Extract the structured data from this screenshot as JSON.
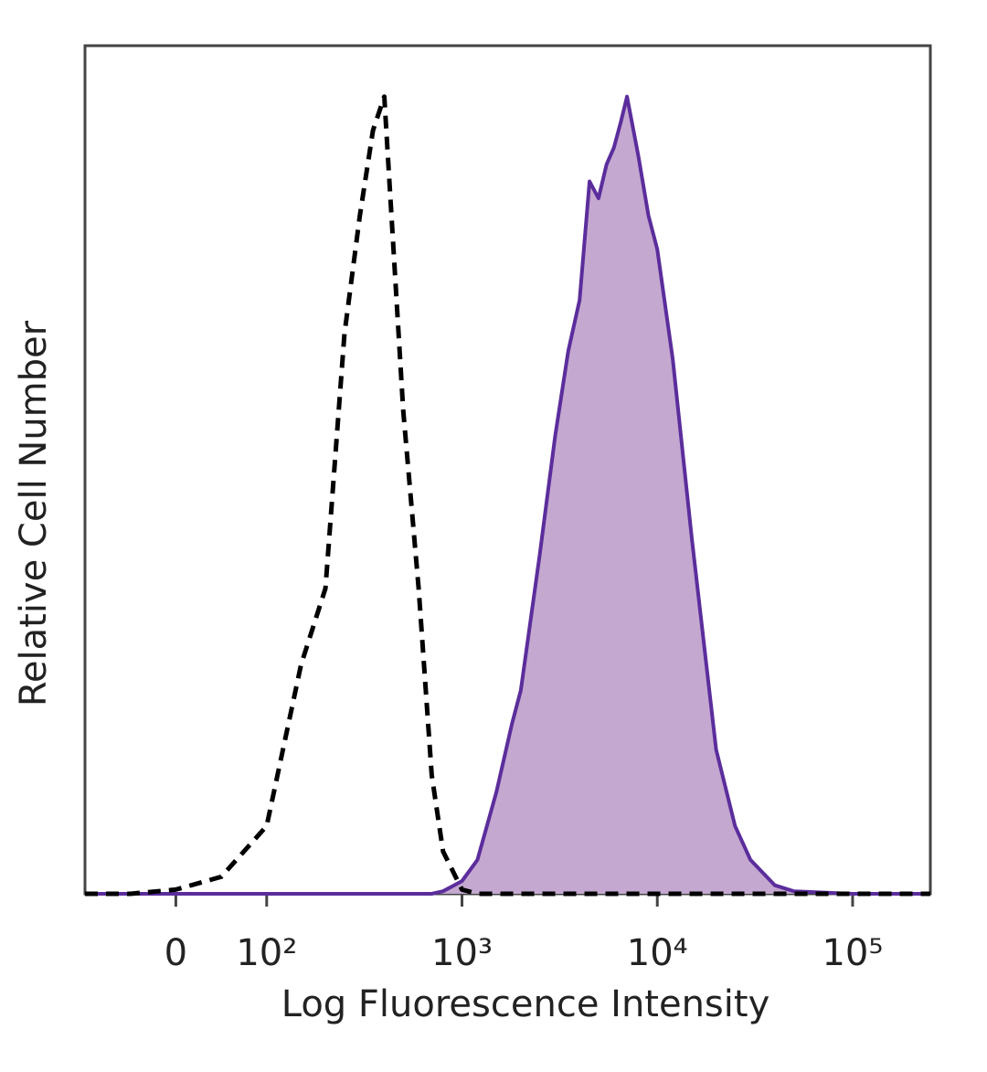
{
  "chart_data": {
    "type": "histogram-overlay",
    "xlabel": "Log Fluorescence Intensity",
    "ylabel": "Relative Cell Number",
    "xscale": "biexponential",
    "xlim": [
      -100,
      250000
    ],
    "ylim": [
      0,
      100
    ],
    "xticks": [
      0,
      {
        "value": 100,
        "label": "10²"
      },
      {
        "value": 1000,
        "label": "10³"
      },
      {
        "value": 10000,
        "label": "10⁴"
      },
      {
        "value": 100000,
        "label": "10⁵"
      }
    ],
    "x": [
      -100,
      -50,
      0,
      50,
      100,
      150,
      200,
      250,
      300,
      350,
      400,
      500,
      600,
      700,
      800,
      1000,
      1200,
      1500,
      1800,
      2000,
      2500,
      3000,
      3500,
      4000,
      4500,
      5000,
      5500,
      6000,
      6500,
      7000,
      8000,
      9000,
      10000,
      12000,
      15000,
      20000,
      25000,
      30000,
      40000,
      50000,
      100000,
      250000
    ],
    "series": [
      {
        "color": "#5b2d9c",
        "fill_color": "#c4a8d0",
        "values": [
          0,
          0,
          0,
          0,
          0,
          0,
          0,
          0,
          0,
          0,
          0,
          0,
          0,
          0,
          0.3,
          1.5,
          4,
          12,
          20,
          24,
          40,
          54,
          64,
          70,
          84,
          82,
          86,
          88,
          91,
          94,
          87,
          80,
          76,
          63,
          42,
          17,
          8,
          4,
          1,
          0.3,
          0,
          0
        ]
      },
      {
        "color": "#000000",
        "line_style": "dashed",
        "values": [
          0,
          0,
          0.5,
          2,
          8,
          27,
          36,
          66,
          80,
          90,
          94,
          57,
          36,
          14,
          5,
          0.5,
          0,
          0,
          0,
          0,
          0,
          0,
          0,
          0,
          0,
          0,
          0,
          0,
          0,
          0,
          0,
          0,
          0,
          0,
          0,
          0,
          0,
          0,
          0,
          0,
          0,
          0
        ]
      }
    ]
  }
}
